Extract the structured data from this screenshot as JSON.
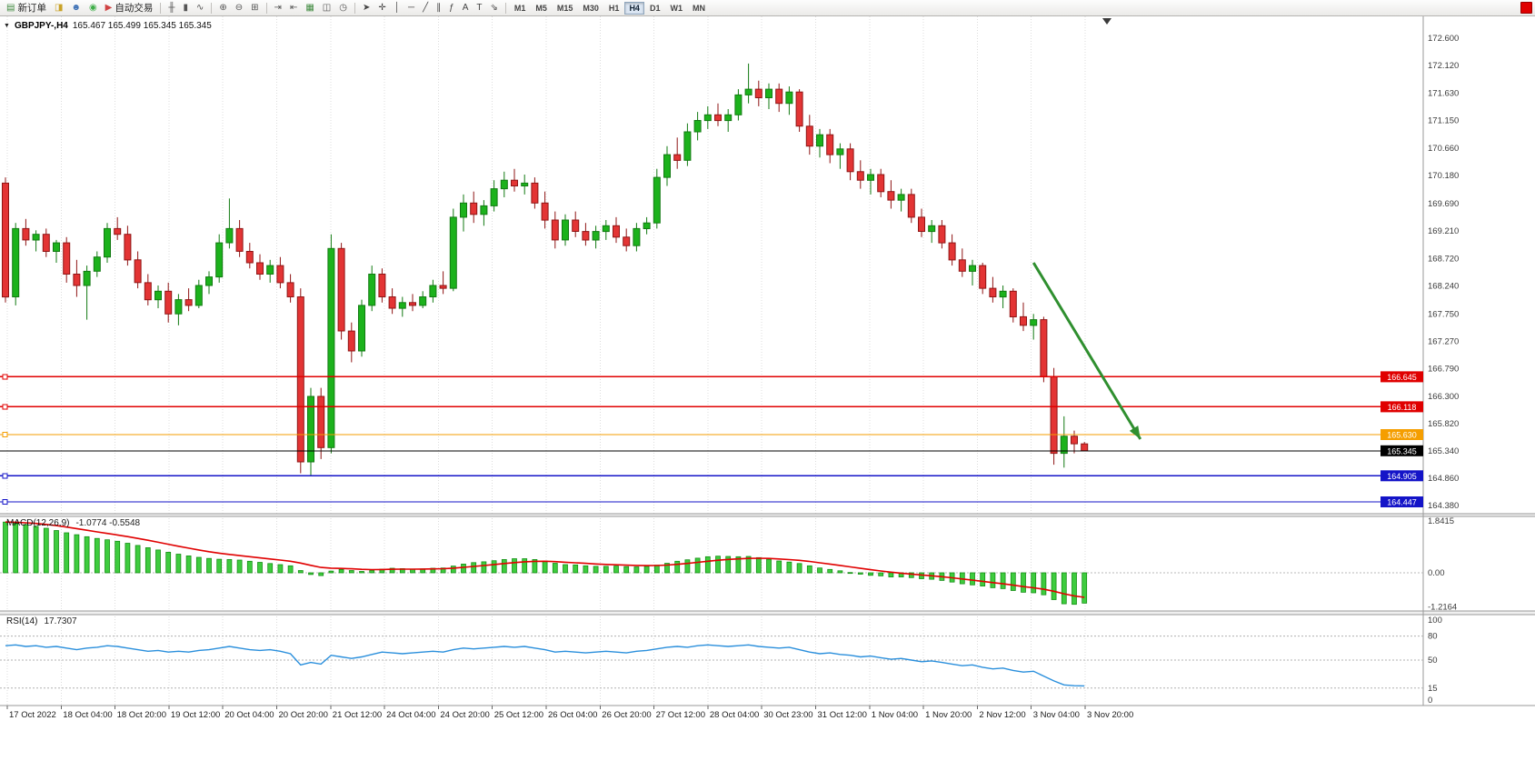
{
  "toolbar": {
    "new_order": {
      "button": "new-order-button",
      "icon": "new-order-icon",
      "glyph": "▤",
      "color": "#3f8a3f",
      "label": "新订单"
    },
    "auto_trading": {
      "button": "auto-trading-button",
      "icon": "auto-trading-icon",
      "glyph": "▶",
      "color": "#d04343",
      "label": "自动交易"
    },
    "quick_icons": [
      {
        "button": "symbols-button",
        "icon": "symbols-icon",
        "glyph": "◨",
        "color": "#c9a227"
      },
      {
        "button": "profile-button",
        "icon": "profile-icon",
        "glyph": "☻",
        "color": "#3b6fb5"
      },
      {
        "button": "sound-button",
        "icon": "sound-icon",
        "glyph": "◉",
        "color": "#3fae49"
      }
    ],
    "chart_type_icons": [
      {
        "button": "bar-chart-button",
        "icon": "bar-chart-icon",
        "glyph": "╫",
        "color": "#555555"
      },
      {
        "button": "candlestick-chart-button",
        "icon": "candlestick-chart-icon",
        "glyph": "▮",
        "color": "#555555"
      },
      {
        "button": "line-chart-button",
        "icon": "line-chart-icon",
        "glyph": "∿",
        "color": "#555555"
      }
    ],
    "zoom_icons": [
      {
        "button": "zoom-in-button",
        "icon": "zoom-in-icon",
        "glyph": "⊕",
        "color": "#555555"
      },
      {
        "button": "zoom-out-button",
        "icon": "zoom-out-icon",
        "glyph": "⊖",
        "color": "#555555"
      },
      {
        "button": "tile-windows-button",
        "icon": "tile-windows-icon",
        "glyph": "⊞",
        "color": "#555555"
      }
    ],
    "nav_icons": [
      {
        "button": "auto-scroll-button",
        "icon": "auto-scroll-icon",
        "glyph": "⇥",
        "color": "#555555"
      },
      {
        "button": "chart-shift-button",
        "icon": "chart-shift-icon",
        "glyph": "⇤",
        "color": "#555555"
      },
      {
        "button": "new-chart-button",
        "icon": "new-chart-icon",
        "glyph": "▦",
        "color": "#3f8a3f"
      },
      {
        "button": "templates-button",
        "icon": "templates-icon",
        "glyph": "◫",
        "color": "#555555"
      },
      {
        "button": "clock-button",
        "icon": "clock-icon",
        "glyph": "◷",
        "color": "#555555"
      }
    ],
    "draw_icons": [
      {
        "button": "cursor-button",
        "icon": "cursor-icon",
        "glyph": "➤",
        "color": "#444444"
      },
      {
        "button": "crosshair-button",
        "icon": "crosshair-icon",
        "glyph": "✛",
        "color": "#444444"
      },
      {
        "button": "vertical-line-button",
        "icon": "vertical-line-icon",
        "glyph": "│",
        "color": "#444444"
      },
      {
        "button": "horizontal-line-button",
        "icon": "horizontal-line-icon",
        "glyph": "─",
        "color": "#444444"
      },
      {
        "button": "trendline-button",
        "icon": "trendline-icon",
        "glyph": "╱",
        "color": "#444444"
      },
      {
        "button": "channel-button",
        "icon": "channel-icon",
        "glyph": "∥",
        "color": "#444444"
      },
      {
        "button": "fibonacci-button",
        "icon": "fibonacci-icon",
        "glyph": "ƒ",
        "color": "#444444"
      },
      {
        "button": "text-button",
        "icon": "text-icon",
        "glyph": "A",
        "color": "#444444"
      },
      {
        "button": "text-label-button",
        "icon": "text-label-icon",
        "glyph": "T",
        "color": "#444444"
      },
      {
        "button": "arrows-button",
        "icon": "arrows-icon",
        "glyph": "⇘",
        "color": "#444444"
      }
    ],
    "timeframes": [
      {
        "name": "timeframe-m1",
        "label": "M1",
        "active": false
      },
      {
        "name": "timeframe-m5",
        "label": "M5",
        "active": false
      },
      {
        "name": "timeframe-m15",
        "label": "M15",
        "active": false
      },
      {
        "name": "timeframe-m30",
        "label": "M30",
        "active": false
      },
      {
        "name": "timeframe-h1",
        "label": "H1",
        "active": false
      },
      {
        "name": "timeframe-h4",
        "label": "H4",
        "active": true
      },
      {
        "name": "timeframe-d1",
        "label": "D1",
        "active": false
      },
      {
        "name": "timeframe-w1",
        "label": "W1",
        "active": false
      },
      {
        "name": "timeframe-mn",
        "label": "MN",
        "active": false
      }
    ]
  },
  "chart": {
    "title": "GBPJPY-,H4",
    "ohlc": "165.467 165.499 165.345 165.345",
    "window_menu_glyph": "▼"
  },
  "chart_data": {
    "type": "candlestick",
    "symbol": "GBPJPY-",
    "timeframe": "H4",
    "up_color": "#1cb21c",
    "down_color": "#e33434",
    "price_axis": {
      "labels": [
        "172.600",
        "172.120",
        "171.630",
        "171.150",
        "170.660",
        "170.180",
        "169.690",
        "169.210",
        "168.720",
        "168.240",
        "167.750",
        "167.270",
        "166.790",
        "166.300",
        "165.820",
        "165.340",
        "164.860",
        "164.380"
      ]
    },
    "time_axis": {
      "labels": [
        "17 Oct 2022",
        "18 Oct 04:00",
        "18 Oct 20:00",
        "19 Oct 12:00",
        "20 Oct 04:00",
        "20 Oct 20:00",
        "21 Oct 12:00",
        "24 Oct 04:00",
        "24 Oct 20:00",
        "25 Oct 12:00",
        "26 Oct 04:00",
        "26 Oct 20:00",
        "27 Oct 12:00",
        "28 Oct 04:00",
        "30 Oct 23:00",
        "31 Oct 12:00",
        "1 Nov 04:00",
        "1 Nov 20:00",
        "2 Nov 12:00",
        "3 Nov 04:00",
        "3 Nov 20:00"
      ]
    },
    "candles": [
      [
        170.05,
        170.15,
        167.95,
        168.05
      ],
      [
        168.05,
        169.35,
        167.9,
        169.25
      ],
      [
        169.25,
        169.42,
        168.95,
        169.05
      ],
      [
        169.05,
        169.22,
        168.85,
        169.15
      ],
      [
        169.15,
        169.25,
        168.75,
        168.85
      ],
      [
        168.85,
        169.05,
        168.65,
        169.0
      ],
      [
        169.0,
        169.1,
        168.3,
        168.45
      ],
      [
        168.45,
        168.7,
        168.05,
        168.25
      ],
      [
        168.25,
        168.6,
        167.65,
        168.5
      ],
      [
        168.5,
        168.85,
        168.4,
        168.75
      ],
      [
        168.75,
        169.35,
        168.65,
        169.25
      ],
      [
        169.25,
        169.45,
        169.05,
        169.15
      ],
      [
        169.15,
        169.3,
        168.6,
        168.7
      ],
      [
        168.7,
        168.85,
        168.2,
        168.3
      ],
      [
        168.3,
        168.45,
        167.9,
        168.0
      ],
      [
        168.0,
        168.25,
        167.85,
        168.15
      ],
      [
        168.15,
        168.3,
        167.6,
        167.75
      ],
      [
        167.75,
        168.1,
        167.55,
        168.0
      ],
      [
        168.0,
        168.2,
        167.8,
        167.9
      ],
      [
        167.9,
        168.35,
        167.85,
        168.25
      ],
      [
        168.25,
        168.5,
        168.1,
        168.4
      ],
      [
        168.4,
        169.15,
        168.3,
        169.0
      ],
      [
        169.0,
        169.78,
        168.9,
        169.25
      ],
      [
        169.25,
        169.4,
        168.75,
        168.85
      ],
      [
        168.85,
        169.0,
        168.55,
        168.65
      ],
      [
        168.65,
        168.8,
        168.35,
        168.45
      ],
      [
        168.45,
        168.7,
        168.3,
        168.6
      ],
      [
        168.6,
        168.75,
        168.2,
        168.3
      ],
      [
        168.3,
        168.45,
        167.95,
        168.05
      ],
      [
        168.05,
        168.2,
        164.95,
        165.15
      ],
      [
        165.15,
        166.45,
        164.9,
        166.3
      ],
      [
        166.3,
        166.45,
        165.2,
        165.4
      ],
      [
        165.4,
        169.15,
        165.3,
        168.9
      ],
      [
        168.9,
        169.0,
        167.3,
        167.45
      ],
      [
        167.45,
        167.6,
        166.9,
        167.1
      ],
      [
        167.1,
        168.0,
        167.0,
        167.9
      ],
      [
        167.9,
        168.6,
        167.8,
        168.45
      ],
      [
        168.45,
        168.55,
        167.95,
        168.05
      ],
      [
        168.05,
        168.2,
        167.75,
        167.85
      ],
      [
        167.85,
        168.05,
        167.7,
        167.95
      ],
      [
        167.95,
        168.1,
        167.8,
        167.9
      ],
      [
        167.9,
        168.15,
        167.85,
        168.05
      ],
      [
        168.05,
        168.35,
        167.95,
        168.25
      ],
      [
        168.25,
        168.5,
        168.1,
        168.2
      ],
      [
        168.2,
        169.6,
        168.15,
        169.45
      ],
      [
        169.45,
        169.85,
        169.2,
        169.7
      ],
      [
        169.7,
        169.9,
        169.35,
        169.5
      ],
      [
        169.5,
        169.75,
        169.3,
        169.65
      ],
      [
        169.65,
        170.1,
        169.55,
        169.95
      ],
      [
        169.95,
        170.25,
        169.8,
        170.1
      ],
      [
        170.1,
        170.3,
        169.9,
        170.0
      ],
      [
        170.0,
        170.2,
        169.85,
        170.05
      ],
      [
        170.05,
        170.15,
        169.6,
        169.7
      ],
      [
        169.7,
        169.9,
        169.25,
        169.4
      ],
      [
        169.4,
        169.55,
        168.9,
        169.05
      ],
      [
        169.05,
        169.5,
        168.95,
        169.4
      ],
      [
        169.4,
        169.55,
        169.1,
        169.2
      ],
      [
        169.2,
        169.35,
        168.95,
        169.05
      ],
      [
        169.05,
        169.3,
        168.9,
        169.2
      ],
      [
        169.2,
        169.4,
        169.05,
        169.3
      ],
      [
        169.3,
        169.45,
        169.0,
        169.1
      ],
      [
        169.1,
        169.25,
        168.85,
        168.95
      ],
      [
        168.95,
        169.35,
        168.85,
        169.25
      ],
      [
        169.25,
        169.45,
        169.15,
        169.35
      ],
      [
        169.35,
        170.3,
        169.25,
        170.15
      ],
      [
        170.15,
        170.7,
        170.0,
        170.55
      ],
      [
        170.55,
        170.85,
        170.3,
        170.45
      ],
      [
        170.45,
        171.1,
        170.35,
        170.95
      ],
      [
        170.95,
        171.3,
        170.8,
        171.15
      ],
      [
        171.15,
        171.4,
        171.0,
        171.25
      ],
      [
        171.25,
        171.45,
        171.05,
        171.15
      ],
      [
        171.15,
        171.35,
        170.95,
        171.25
      ],
      [
        171.25,
        171.7,
        171.15,
        171.6
      ],
      [
        171.6,
        172.15,
        171.45,
        171.7
      ],
      [
        171.7,
        171.85,
        171.4,
        171.55
      ],
      [
        171.55,
        171.8,
        171.35,
        171.7
      ],
      [
        171.7,
        171.8,
        171.3,
        171.45
      ],
      [
        171.45,
        171.75,
        171.25,
        171.65
      ],
      [
        171.65,
        171.7,
        170.95,
        171.05
      ],
      [
        171.05,
        171.25,
        170.55,
        170.7
      ],
      [
        170.7,
        171.0,
        170.5,
        170.9
      ],
      [
        170.9,
        171.0,
        170.4,
        170.55
      ],
      [
        170.55,
        170.75,
        170.3,
        170.65
      ],
      [
        170.65,
        170.75,
        170.1,
        170.25
      ],
      [
        170.25,
        170.45,
        169.95,
        170.1
      ],
      [
        170.1,
        170.3,
        169.85,
        170.2
      ],
      [
        170.2,
        170.3,
        169.8,
        169.9
      ],
      [
        169.9,
        170.1,
        169.6,
        169.75
      ],
      [
        169.75,
        169.95,
        169.55,
        169.85
      ],
      [
        169.85,
        169.95,
        169.35,
        169.45
      ],
      [
        169.45,
        169.6,
        169.1,
        169.2
      ],
      [
        169.2,
        169.4,
        169.0,
        169.3
      ],
      [
        169.3,
        169.4,
        168.9,
        169.0
      ],
      [
        169.0,
        169.15,
        168.6,
        168.7
      ],
      [
        168.7,
        168.9,
        168.4,
        168.5
      ],
      [
        168.5,
        168.7,
        168.25,
        168.6
      ],
      [
        168.6,
        168.65,
        168.1,
        168.2
      ],
      [
        168.2,
        168.4,
        167.95,
        168.05
      ],
      [
        168.05,
        168.25,
        167.85,
        168.15
      ],
      [
        168.15,
        168.2,
        167.6,
        167.7
      ],
      [
        167.7,
        167.95,
        167.45,
        167.55
      ],
      [
        167.55,
        167.75,
        167.3,
        167.65
      ],
      [
        167.65,
        167.7,
        166.55,
        166.65
      ],
      [
        166.65,
        166.8,
        165.1,
        165.3
      ],
      [
        165.3,
        165.95,
        165.05,
        165.6
      ],
      [
        165.6,
        165.7,
        165.3,
        165.467
      ],
      [
        165.467,
        165.499,
        165.345,
        165.345
      ]
    ],
    "horizontal_lines": [
      {
        "price": 166.645,
        "label": "166.645",
        "color": "#e00000",
        "is_bid": false
      },
      {
        "price": 166.118,
        "label": "166.118",
        "color": "#e00000",
        "is_bid": false
      },
      {
        "price": 165.63,
        "label": "165.630",
        "color": "#f59e00",
        "is_bid": false
      },
      {
        "price": 165.345,
        "label": "165.345",
        "color": "#000000",
        "is_bid": true
      },
      {
        "price": 164.905,
        "label": "164.905",
        "color": "#1414c8",
        "is_bid": false
      },
      {
        "price": 164.447,
        "label": "164.447",
        "color": "#1414c8",
        "is_bid": false
      }
    ],
    "trend_arrow": {
      "from": {
        "index": 101,
        "price": 168.65
      },
      "to": {
        "index": 111.5,
        "price": 165.55
      },
      "color": "#2f8f2f"
    },
    "indicators": [
      {
        "id": "macd",
        "name": "MACD(12,26,9)",
        "values_text": "-1.0774 -0.5548",
        "histogram_color": "#3ecc3e",
        "signal_color": "#e00000",
        "axis": [
          {
            "text": "1.8415",
            "value": 1.8415
          },
          {
            "text": "0.00",
            "value": 0
          },
          {
            "text": "-1.2164",
            "value": -1.2164
          }
        ],
        "histogram": [
          1.8,
          1.76,
          1.71,
          1.65,
          1.58,
          1.5,
          1.42,
          1.35,
          1.28,
          1.22,
          1.17,
          1.12,
          1.05,
          0.97,
          0.89,
          0.81,
          0.73,
          0.66,
          0.6,
          0.55,
          0.51,
          0.48,
          0.47,
          0.45,
          0.41,
          0.37,
          0.33,
          0.29,
          0.25,
          0.08,
          -0.06,
          -0.1,
          0.06,
          0.12,
          0.08,
          0.05,
          0.08,
          0.13,
          0.16,
          0.15,
          0.13,
          0.14,
          0.16,
          0.17,
          0.24,
          0.31,
          0.36,
          0.39,
          0.43,
          0.47,
          0.5,
          0.5,
          0.47,
          0.42,
          0.34,
          0.29,
          0.28,
          0.25,
          0.23,
          0.23,
          0.24,
          0.22,
          0.21,
          0.23,
          0.27,
          0.34,
          0.41,
          0.46,
          0.52,
          0.57,
          0.59,
          0.58,
          0.57,
          0.58,
          0.54,
          0.48,
          0.42,
          0.38,
          0.33,
          0.25,
          0.17,
          0.12,
          0.07,
          0.01,
          -0.05,
          -0.09,
          -0.11,
          -0.15,
          -0.15,
          -0.17,
          -0.21,
          -0.23,
          -0.27,
          -0.33,
          -0.39,
          -0.43,
          -0.47,
          -0.53,
          -0.56,
          -0.63,
          -0.69,
          -0.71,
          -0.78,
          -0.95,
          -1.1,
          -1.12,
          -1.0774
        ]
      },
      {
        "id": "rsi",
        "name": "RSI(14)",
        "values_text": "17.7307",
        "line_color": "#2a8fdc",
        "axis": [
          {
            "text": "100",
            "value": 100
          },
          {
            "text": "80",
            "value": 80
          },
          {
            "text": "50",
            "value": 50
          },
          {
            "text": "15",
            "value": 15
          },
          {
            "text": "0",
            "value": 0
          }
        ],
        "levels": [
          80,
          50,
          15
        ],
        "values": [
          68,
          69,
          67,
          68,
          66,
          67,
          65,
          63,
          65,
          66,
          68,
          67,
          65,
          63,
          61,
          62,
          60,
          61,
          60,
          62,
          63,
          65,
          67,
          65,
          63,
          62,
          63,
          61,
          58,
          44,
          47,
          45,
          56,
          54,
          52,
          54,
          57,
          60,
          59,
          58,
          59,
          60,
          61,
          60,
          63,
          65,
          64,
          65,
          66,
          67,
          66,
          67,
          65,
          63,
          60,
          61,
          60,
          59,
          60,
          61,
          60,
          59,
          61,
          62,
          64,
          66,
          67,
          66,
          68,
          69,
          68,
          67,
          68,
          69,
          67,
          66,
          65,
          66,
          63,
          60,
          58,
          59,
          57,
          56,
          54,
          55,
          53,
          51,
          52,
          50,
          48,
          49,
          47,
          45,
          43,
          44,
          41,
          39,
          40,
          37,
          35,
          36,
          30,
          24,
          19,
          18,
          17.73
        ]
      }
    ]
  }
}
